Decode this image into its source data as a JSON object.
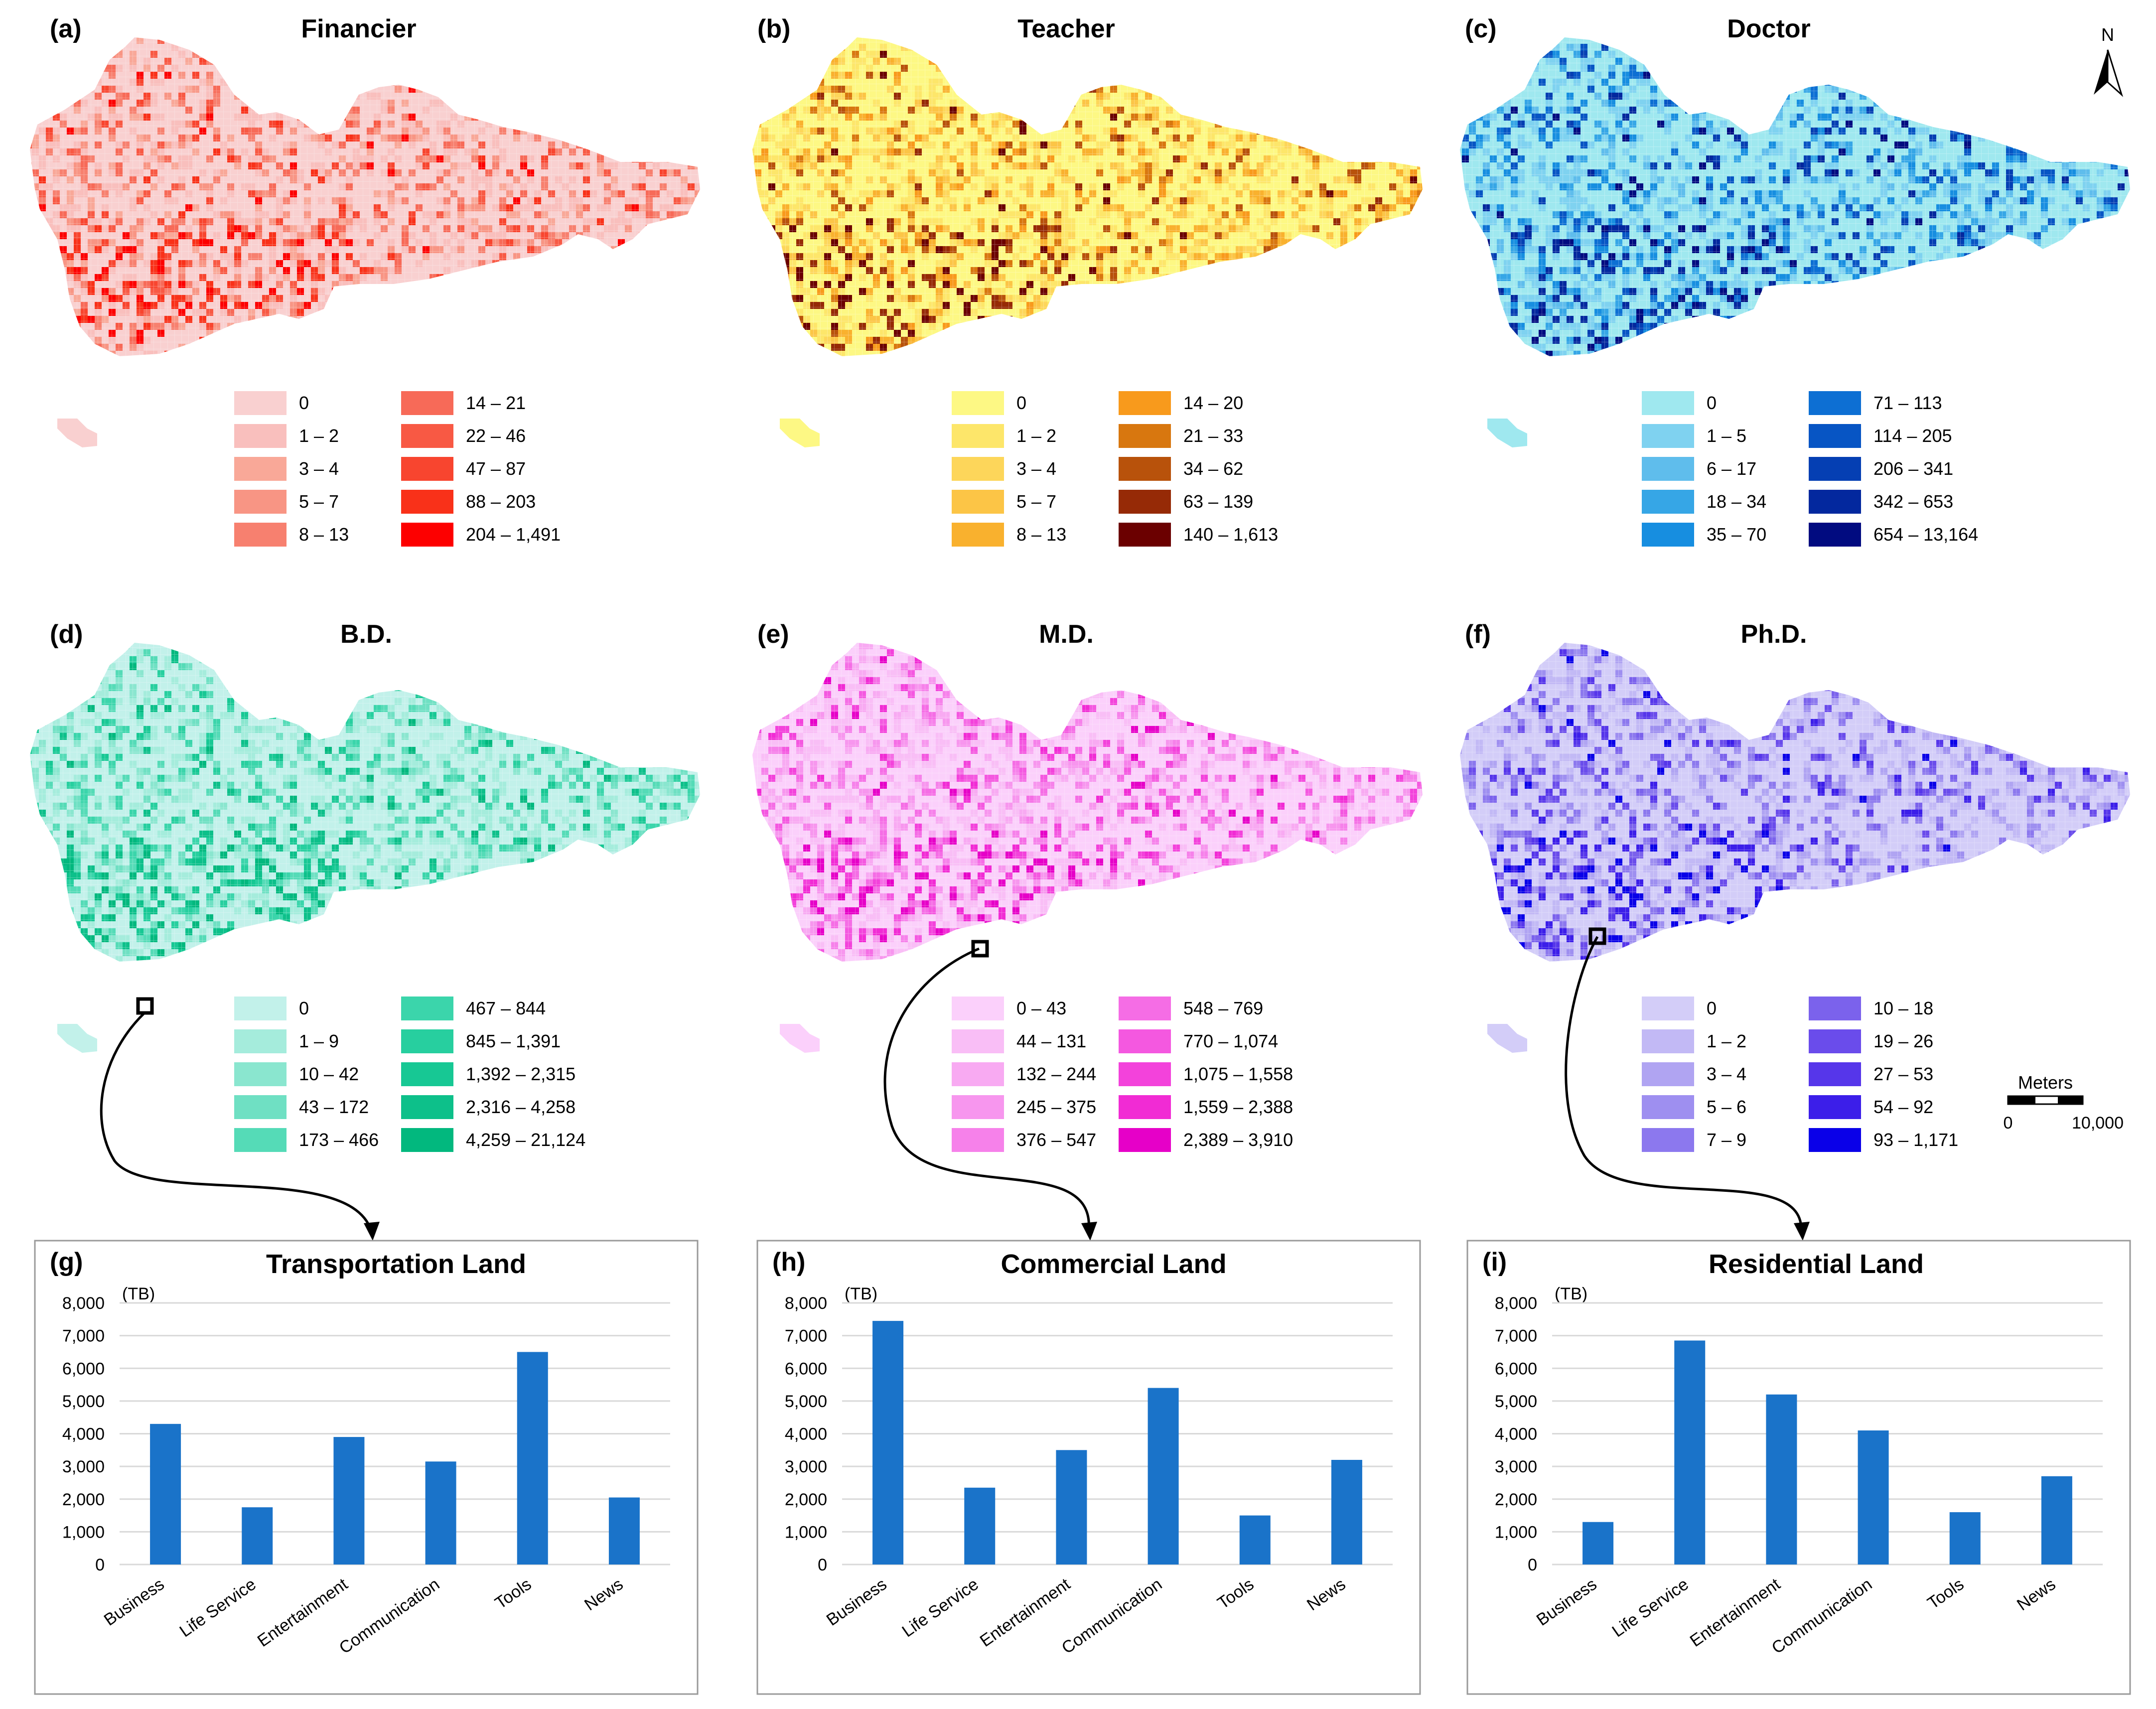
{
  "maps": [
    {
      "id": "a",
      "label": "(a)",
      "title": "Financier",
      "colors": [
        "#f9d0d0",
        "#f9bfbd",
        "#f9a898",
        "#f89584",
        "#f7806f",
        "#f76a58",
        "#f85944",
        "#f8452f",
        "#f93119",
        "#fd0000"
      ],
      "legend": [
        "0",
        "1 – 2",
        "3 – 4",
        "5 – 7",
        "8 – 13",
        "14 – 21",
        "22 – 46",
        "47 – 87",
        "88 – 203",
        "204 – 1,491"
      ]
    },
    {
      "id": "b",
      "label": "(b)",
      "title": "Teacher",
      "colors": [
        "#fdf884",
        "#fde66a",
        "#fdd65a",
        "#fcc546",
        "#f9b12e",
        "#f89a1c",
        "#d8770f",
        "#b8520b",
        "#962a06",
        "#6b0000"
      ],
      "legend": [
        "0",
        "1 – 2",
        "3 – 4",
        "5 – 7",
        "8 – 13",
        "14 – 20",
        "21 – 33",
        "34 – 62",
        "63 – 139",
        "140 – 1,613"
      ]
    },
    {
      "id": "c",
      "label": "(c)",
      "title": "Doctor",
      "colors": [
        "#9fe8ef",
        "#7fd2f0",
        "#5fbdec",
        "#36a6e6",
        "#178ee0",
        "#0d6fd3",
        "#0755c4",
        "#053fb3",
        "#03289e",
        "#010b80"
      ],
      "legend": [
        "0",
        "1 – 5",
        "6 – 17",
        "18 – 34",
        "35 – 70",
        "71 – 113",
        "114 – 205",
        "206 – 341",
        "342 – 653",
        "654 – 13,164"
      ]
    },
    {
      "id": "d",
      "label": "(d)",
      "title": "B.D.",
      "colors": [
        "#c2f1ea",
        "#a5ecdc",
        "#8ae6cf",
        "#6fe0c3",
        "#55dbb7",
        "#3bd5ab",
        "#27cf9f",
        "#17c894",
        "#0dc08a",
        "#02b87e"
      ],
      "legend": [
        "0",
        "1 – 9",
        "10 – 42",
        "43 – 172",
        "173 – 466",
        "467 – 844",
        "845 – 1,391",
        "1,392 – 2,315",
        "2,316 – 4,258",
        "4,259 – 21,124"
      ]
    },
    {
      "id": "e",
      "label": "(e)",
      "title": "M.D.",
      "colors": [
        "#fbd0fb",
        "#f9bef6",
        "#f8aaf2",
        "#f796ee",
        "#f681ea",
        "#f56de5",
        "#f458e0",
        "#f342db",
        "#f12bd4",
        "#e600c8"
      ],
      "legend": [
        "0 – 43",
        "44 – 131",
        "132 – 244",
        "245 – 375",
        "376 – 547",
        "548 – 769",
        "770 – 1,074",
        "1,075 – 1,558",
        "1,559 – 2,388",
        "2,389 – 3,910"
      ]
    },
    {
      "id": "f",
      "label": "(f)",
      "title": "Ph.D.",
      "colors": [
        "#d3cdf8",
        "#c2b9f5",
        "#b0a4f2",
        "#9e8ff0",
        "#8c78ee",
        "#7b62ec",
        "#6a4ceb",
        "#5636ea",
        "#3c1ee9",
        "#0a00e8"
      ],
      "legend": [
        "0",
        "1 – 2",
        "3 – 4",
        "5 – 6",
        "7 – 9",
        "10 – 18",
        "19 – 26",
        "27 – 53",
        "54 – 92",
        "93 – 1,171"
      ]
    }
  ],
  "north_label": "N",
  "scale_bar": {
    "title": "Meters",
    "left": "0",
    "right": "10,000"
  },
  "bar_charts": [
    {
      "id": "g",
      "label": "(g)",
      "title": "Transportation Land",
      "unit": "(TB)"
    },
    {
      "id": "h",
      "label": "(h)",
      "title": "Commercial Land",
      "unit": "(TB)"
    },
    {
      "id": "i",
      "label": "(i)",
      "title": "Residential Land",
      "unit": "(TB)"
    }
  ],
  "chart_data": [
    {
      "type": "bar",
      "title": "Transportation Land",
      "ylabel": "(TB)",
      "ylim": [
        0,
        8000
      ],
      "yticks": [
        "0",
        "1,000",
        "2,000",
        "3,000",
        "4,000",
        "5,000",
        "6,000",
        "7,000",
        "8,000"
      ],
      "categories": [
        "Business",
        "Life Service",
        "Entertainment",
        "Communication",
        "Tools",
        "News"
      ],
      "values": [
        4300,
        1750,
        3900,
        3150,
        6500,
        2050
      ],
      "color": "#1a73c9"
    },
    {
      "type": "bar",
      "title": "Commercial Land",
      "ylabel": "(TB)",
      "ylim": [
        0,
        8000
      ],
      "yticks": [
        "0",
        "1,000",
        "2,000",
        "3,000",
        "4,000",
        "5,000",
        "6,000",
        "7,000",
        "8,000"
      ],
      "categories": [
        "Business",
        "Life Service",
        "Entertainment",
        "Communication",
        "Tools",
        "News"
      ],
      "values": [
        7450,
        2350,
        3500,
        5400,
        1500,
        3200
      ],
      "color": "#1a73c9"
    },
    {
      "type": "bar",
      "title": "Residential Land",
      "ylabel": "(TB)",
      "ylim": [
        0,
        8000
      ],
      "yticks": [
        "0",
        "1,000",
        "2,000",
        "3,000",
        "4,000",
        "5,000",
        "6,000",
        "7,000",
        "8,000"
      ],
      "categories": [
        "Business",
        "Life Service",
        "Entertainment",
        "Communication",
        "Tools",
        "News"
      ],
      "values": [
        1300,
        6850,
        5200,
        4100,
        1600,
        2700
      ],
      "color": "#1a73c9"
    }
  ]
}
